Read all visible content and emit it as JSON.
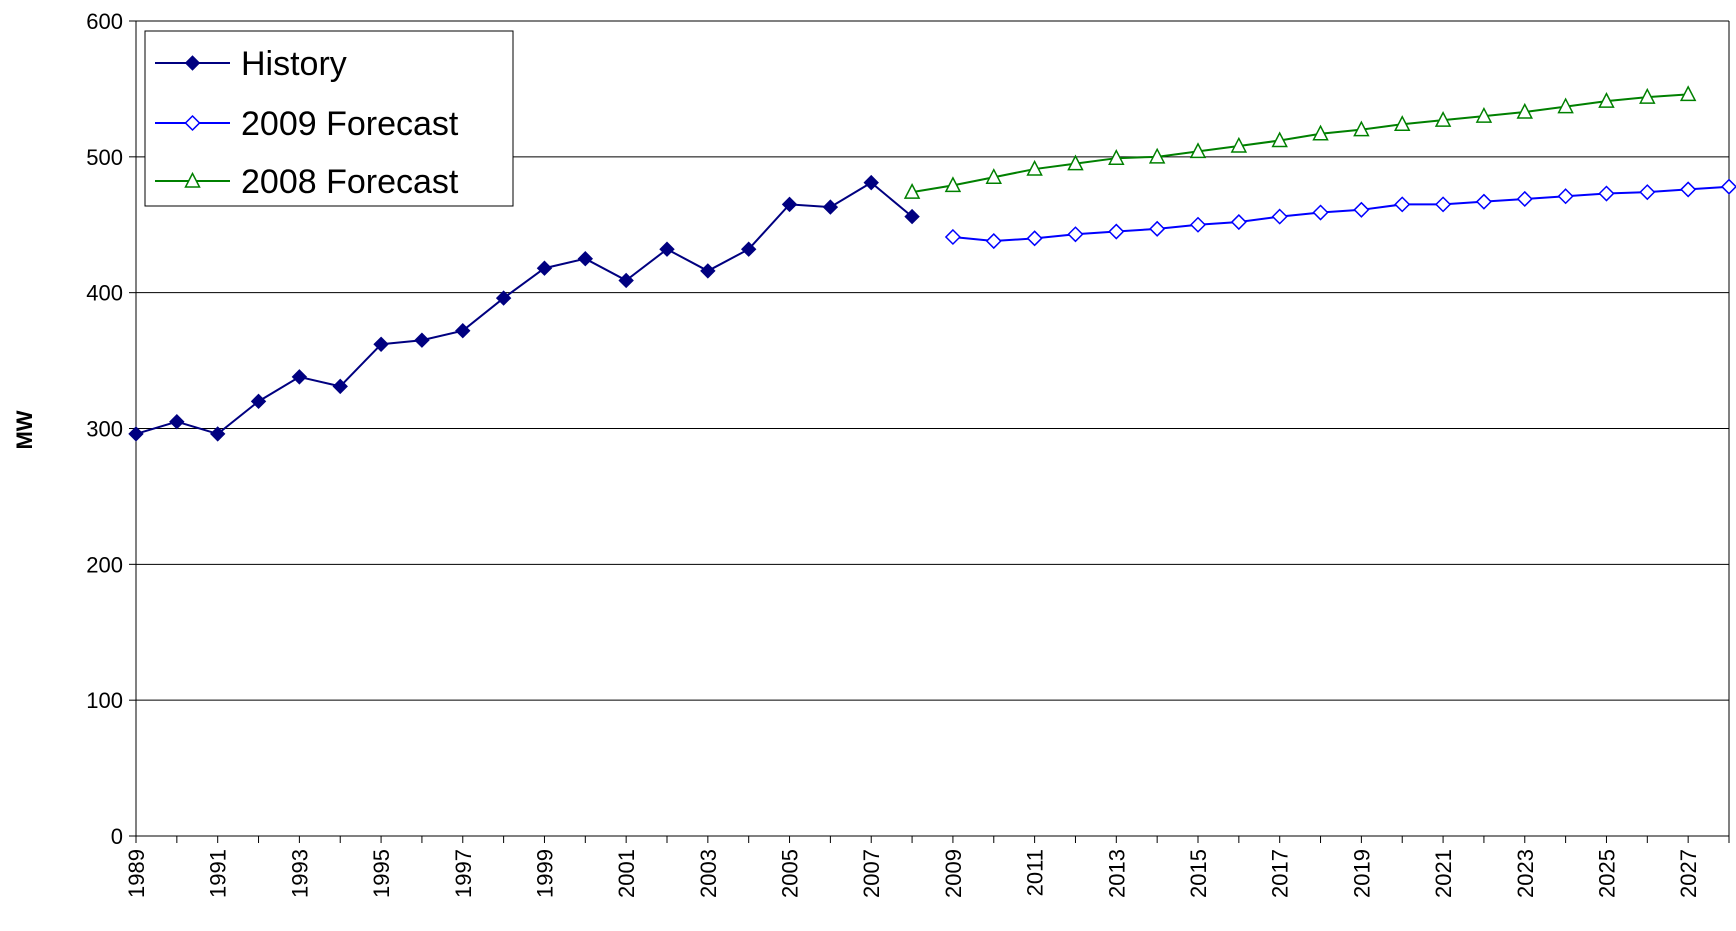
{
  "chart_data": {
    "type": "line",
    "title": "",
    "xlabel": "",
    "ylabel": "MW",
    "ylim": [
      0,
      600
    ],
    "yticks": [
      0,
      100,
      200,
      300,
      400,
      500,
      600
    ],
    "xlim": [
      1989,
      2028
    ],
    "xtick_labels": [
      "1989",
      "1991",
      "1993",
      "1995",
      "1997",
      "1999",
      "2001",
      "2003",
      "2005",
      "2007",
      "2009",
      "2011",
      "2013",
      "2015",
      "2017",
      "2019",
      "2021",
      "2023",
      "2025",
      "2027"
    ],
    "grid": "horizontal",
    "legend_position": "top-left",
    "series": [
      {
        "name": "History",
        "color": "#000080",
        "marker": "filled-diamond",
        "x": [
          1989,
          1990,
          1991,
          1992,
          1993,
          1994,
          1995,
          1996,
          1997,
          1998,
          1999,
          2000,
          2001,
          2002,
          2003,
          2004,
          2005,
          2006,
          2007,
          2008
        ],
        "values": [
          296,
          305,
          296,
          320,
          338,
          331,
          362,
          365,
          372,
          396,
          418,
          425,
          409,
          432,
          416,
          432,
          465,
          463,
          481,
          456
        ]
      },
      {
        "name": "2009 Forecast",
        "color": "#0000FF",
        "marker": "open-diamond",
        "x": [
          2009,
          2010,
          2011,
          2012,
          2013,
          2014,
          2015,
          2016,
          2017,
          2018,
          2019,
          2020,
          2021,
          2022,
          2023,
          2024,
          2025,
          2026,
          2027,
          2028
        ],
        "values": [
          441,
          438,
          440,
          443,
          445,
          447,
          450,
          452,
          456,
          459,
          461,
          465,
          465,
          467,
          469,
          471,
          473,
          474,
          476,
          478
        ]
      },
      {
        "name": "2008 Forecast",
        "color": "#008000",
        "marker": "open-triangle",
        "x": [
          2008,
          2009,
          2010,
          2011,
          2012,
          2013,
          2014,
          2015,
          2016,
          2017,
          2018,
          2019,
          2020,
          2021,
          2022,
          2023,
          2024,
          2025,
          2026,
          2027
        ],
        "values": [
          474,
          479,
          485,
          491,
          495,
          499,
          500,
          504,
          508,
          512,
          517,
          520,
          524,
          527,
          530,
          533,
          537,
          541,
          544,
          546
        ]
      }
    ]
  }
}
